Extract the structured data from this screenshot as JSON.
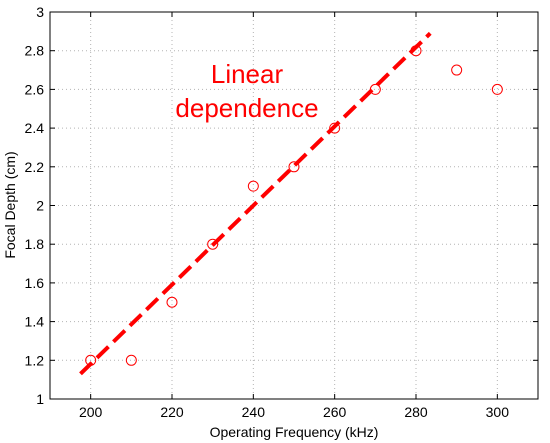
{
  "chart_data": {
    "type": "scatter",
    "xlabel": "Operating Frequency (kHz)",
    "ylabel": "Focal Depth (cm)",
    "xlim": [
      190,
      310
    ],
    "ylim": [
      1,
      3
    ],
    "x_ticks": [
      200,
      220,
      240,
      260,
      280,
      300
    ],
    "y_ticks": [
      1,
      1.2,
      1.4,
      1.6,
      1.8,
      2,
      2.2,
      2.4,
      2.6,
      2.8,
      3
    ],
    "grid": true,
    "series": [
      {
        "marker": "open-circle",
        "color": "#ff0000",
        "x": [
          200,
          210,
          220,
          230,
          240,
          250,
          260,
          270,
          280,
          290,
          300
        ],
        "y": [
          1.2,
          1.2,
          1.5,
          1.8,
          2.1,
          2.2,
          2.4,
          2.6,
          2.8,
          2.7,
          2.6
        ]
      },
      {
        "line_style": "dashed",
        "color": "#ff0000",
        "x": [
          197.5,
          283.5
        ],
        "y": [
          1.13,
          2.89
        ]
      }
    ],
    "annotation": {
      "lines": [
        "Linear",
        "dependence"
      ],
      "color": "#ff0000"
    }
  }
}
